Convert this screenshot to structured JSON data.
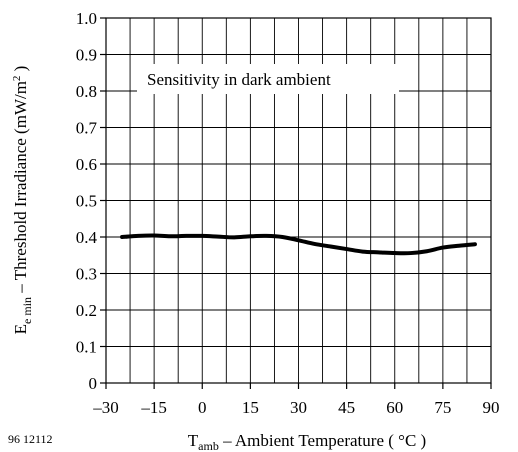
{
  "figure_id": "96 12112",
  "chart_data": {
    "type": "line",
    "title": "",
    "annotation": "Sensitivity in dark ambient",
    "xlabel": {
      "symbol": "T",
      "subscript": "amb",
      "text": " – Ambient Temperature ( °C )"
    },
    "ylabel": {
      "symbol": "E",
      "subscript": "e min",
      "text": " – Threshold Irradiance (mW/m",
      "superscript": "2",
      "suffix": " )"
    },
    "xlim": [
      -30,
      90
    ],
    "ylim": [
      0,
      1.0
    ],
    "xticks": [
      -30,
      -15,
      0,
      15,
      30,
      45,
      60,
      75,
      90
    ],
    "xtick_labels": [
      "–30",
      "–15",
      "0",
      "15",
      "30",
      "45",
      "60",
      "75",
      "90"
    ],
    "yticks": [
      0,
      0.1,
      0.2,
      0.3,
      0.4,
      0.5,
      0.6,
      0.7,
      0.8,
      0.9,
      1.0
    ],
    "ytick_labels": [
      "0",
      "0.1",
      "0.2",
      "0.3",
      "0.4",
      "0.5",
      "0.6",
      "0.7",
      "0.8",
      "0.9",
      "1.0"
    ],
    "x_grid_step": 7.5,
    "grid": true,
    "series": [
      {
        "x": [
          -25,
          -20,
          -15,
          -10,
          -5,
          0,
          5,
          10,
          15,
          20,
          25,
          30,
          35,
          40,
          45,
          50,
          55,
          60,
          65,
          70,
          75,
          80,
          85
        ],
        "y": [
          0.4,
          0.403,
          0.404,
          0.402,
          0.403,
          0.403,
          0.401,
          0.399,
          0.402,
          0.403,
          0.4,
          0.391,
          0.381,
          0.374,
          0.367,
          0.36,
          0.358,
          0.356,
          0.356,
          0.361,
          0.371,
          0.376,
          0.38
        ]
      }
    ]
  }
}
